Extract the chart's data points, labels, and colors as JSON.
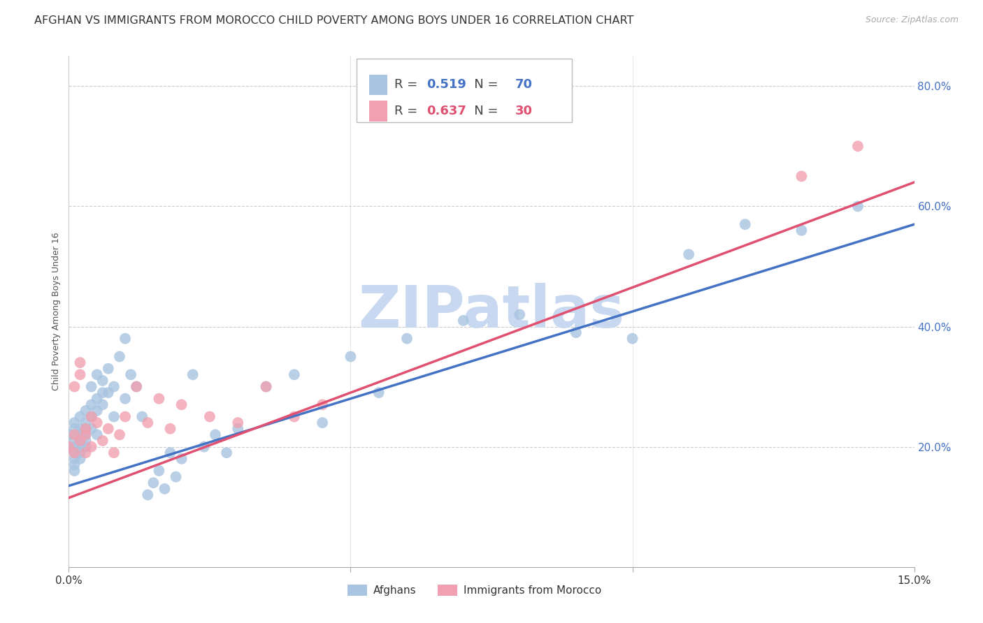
{
  "title": "AFGHAN VS IMMIGRANTS FROM MOROCCO CHILD POVERTY AMONG BOYS UNDER 16 CORRELATION CHART",
  "source": "Source: ZipAtlas.com",
  "ylabel": "Child Poverty Among Boys Under 16",
  "xlim": [
    0.0,
    0.15
  ],
  "ylim": [
    0.0,
    0.85
  ],
  "ytick_positions": [
    0.0,
    0.2,
    0.4,
    0.6,
    0.8
  ],
  "ytick_labels": [
    "",
    "20.0%",
    "40.0%",
    "60.0%",
    "80.0%"
  ],
  "grid_color": "#cccccc",
  "background_color": "#ffffff",
  "afghans_color": "#a8c4e0",
  "morocco_color": "#f0a0b0",
  "line_afghan_color": "#4472c4",
  "line_morocco_color": "#e05070",
  "watermark_text": "ZIPatlas",
  "watermark_color": "#c8d8f0",
  "legend_R_afghan": "0.519",
  "legend_N_afghan": "70",
  "legend_R_morocco": "0.637",
  "legend_N_morocco": "30",
  "afghans_x": [
    0.0,
    0.0,
    0.001,
    0.001,
    0.001,
    0.001,
    0.001,
    0.001,
    0.001,
    0.001,
    0.002,
    0.002,
    0.002,
    0.002,
    0.002,
    0.002,
    0.002,
    0.003,
    0.003,
    0.003,
    0.003,
    0.003,
    0.003,
    0.004,
    0.004,
    0.004,
    0.004,
    0.005,
    0.005,
    0.005,
    0.005,
    0.006,
    0.006,
    0.006,
    0.007,
    0.007,
    0.008,
    0.008,
    0.009,
    0.01,
    0.01,
    0.011,
    0.012,
    0.013,
    0.014,
    0.015,
    0.016,
    0.017,
    0.018,
    0.019,
    0.02,
    0.022,
    0.024,
    0.026,
    0.028,
    0.03,
    0.035,
    0.04,
    0.045,
    0.05,
    0.055,
    0.06,
    0.07,
    0.08,
    0.09,
    0.1,
    0.11,
    0.12,
    0.13,
    0.14
  ],
  "afghans_y": [
    0.2,
    0.22,
    0.19,
    0.21,
    0.23,
    0.17,
    0.18,
    0.2,
    0.24,
    0.16,
    0.2,
    0.22,
    0.19,
    0.23,
    0.21,
    0.25,
    0.18,
    0.22,
    0.24,
    0.2,
    0.26,
    0.23,
    0.21,
    0.25,
    0.27,
    0.23,
    0.3,
    0.28,
    0.32,
    0.26,
    0.22,
    0.29,
    0.31,
    0.27,
    0.33,
    0.29,
    0.3,
    0.25,
    0.35,
    0.28,
    0.38,
    0.32,
    0.3,
    0.25,
    0.12,
    0.14,
    0.16,
    0.13,
    0.19,
    0.15,
    0.18,
    0.32,
    0.2,
    0.22,
    0.19,
    0.23,
    0.3,
    0.32,
    0.24,
    0.35,
    0.29,
    0.38,
    0.41,
    0.42,
    0.39,
    0.38,
    0.52,
    0.57,
    0.56,
    0.6
  ],
  "morocco_x": [
    0.0,
    0.001,
    0.001,
    0.001,
    0.002,
    0.002,
    0.002,
    0.003,
    0.003,
    0.003,
    0.004,
    0.004,
    0.005,
    0.006,
    0.007,
    0.008,
    0.009,
    0.01,
    0.012,
    0.014,
    0.016,
    0.018,
    0.02,
    0.025,
    0.03,
    0.035,
    0.04,
    0.045,
    0.13,
    0.14
  ],
  "morocco_y": [
    0.2,
    0.22,
    0.19,
    0.3,
    0.21,
    0.32,
    0.34,
    0.23,
    0.19,
    0.22,
    0.25,
    0.2,
    0.24,
    0.21,
    0.23,
    0.19,
    0.22,
    0.25,
    0.3,
    0.24,
    0.28,
    0.23,
    0.27,
    0.25,
    0.24,
    0.3,
    0.25,
    0.27,
    0.65,
    0.7
  ],
  "afghan_slope": 2.9,
  "afghan_intercept": 0.135,
  "morocco_slope": 3.5,
  "morocco_intercept": 0.115,
  "title_fontsize": 11.5,
  "source_fontsize": 9,
  "axis_label_fontsize": 9,
  "tick_fontsize": 11,
  "watermark_fontsize": 60
}
